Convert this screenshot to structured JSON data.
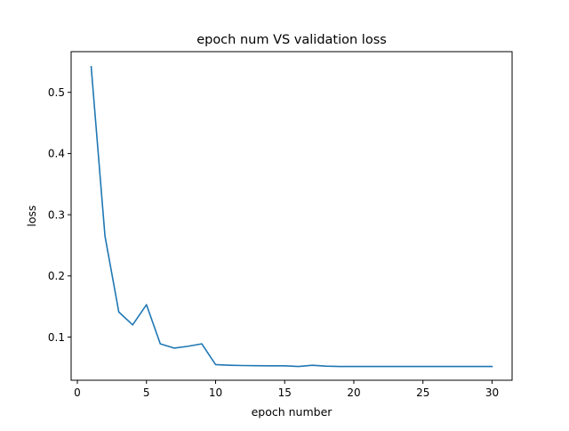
{
  "chart_data": {
    "type": "line",
    "title": "epoch num VS validation loss",
    "xlabel": "epoch number",
    "ylabel": "loss",
    "xlim": [
      -0.45,
      31.45
    ],
    "ylim": [
      0.0295,
      0.5665
    ],
    "xticks": [
      0,
      5,
      10,
      15,
      20,
      25,
      30
    ],
    "yticks": [
      0.1,
      0.2,
      0.3,
      0.4,
      0.5
    ],
    "grid": false,
    "legend": "none",
    "series": [
      {
        "color": "#1f77b4",
        "x": [
          1,
          2,
          3,
          4,
          5,
          6,
          7,
          8,
          9,
          10,
          11,
          12,
          13,
          14,
          15,
          16,
          17,
          18,
          19,
          20,
          21,
          22,
          23,
          24,
          25,
          26,
          27,
          28,
          29,
          30
        ],
        "y": [
          0.542,
          0.265,
          0.141,
          0.12,
          0.153,
          0.089,
          0.082,
          0.085,
          0.089,
          0.055,
          0.054,
          0.0535,
          0.0533,
          0.053,
          0.053,
          0.052,
          0.054,
          0.0525,
          0.052,
          0.052,
          0.052,
          0.052,
          0.052,
          0.052,
          0.052,
          0.052,
          0.052,
          0.052,
          0.052,
          0.052
        ]
      }
    ]
  }
}
